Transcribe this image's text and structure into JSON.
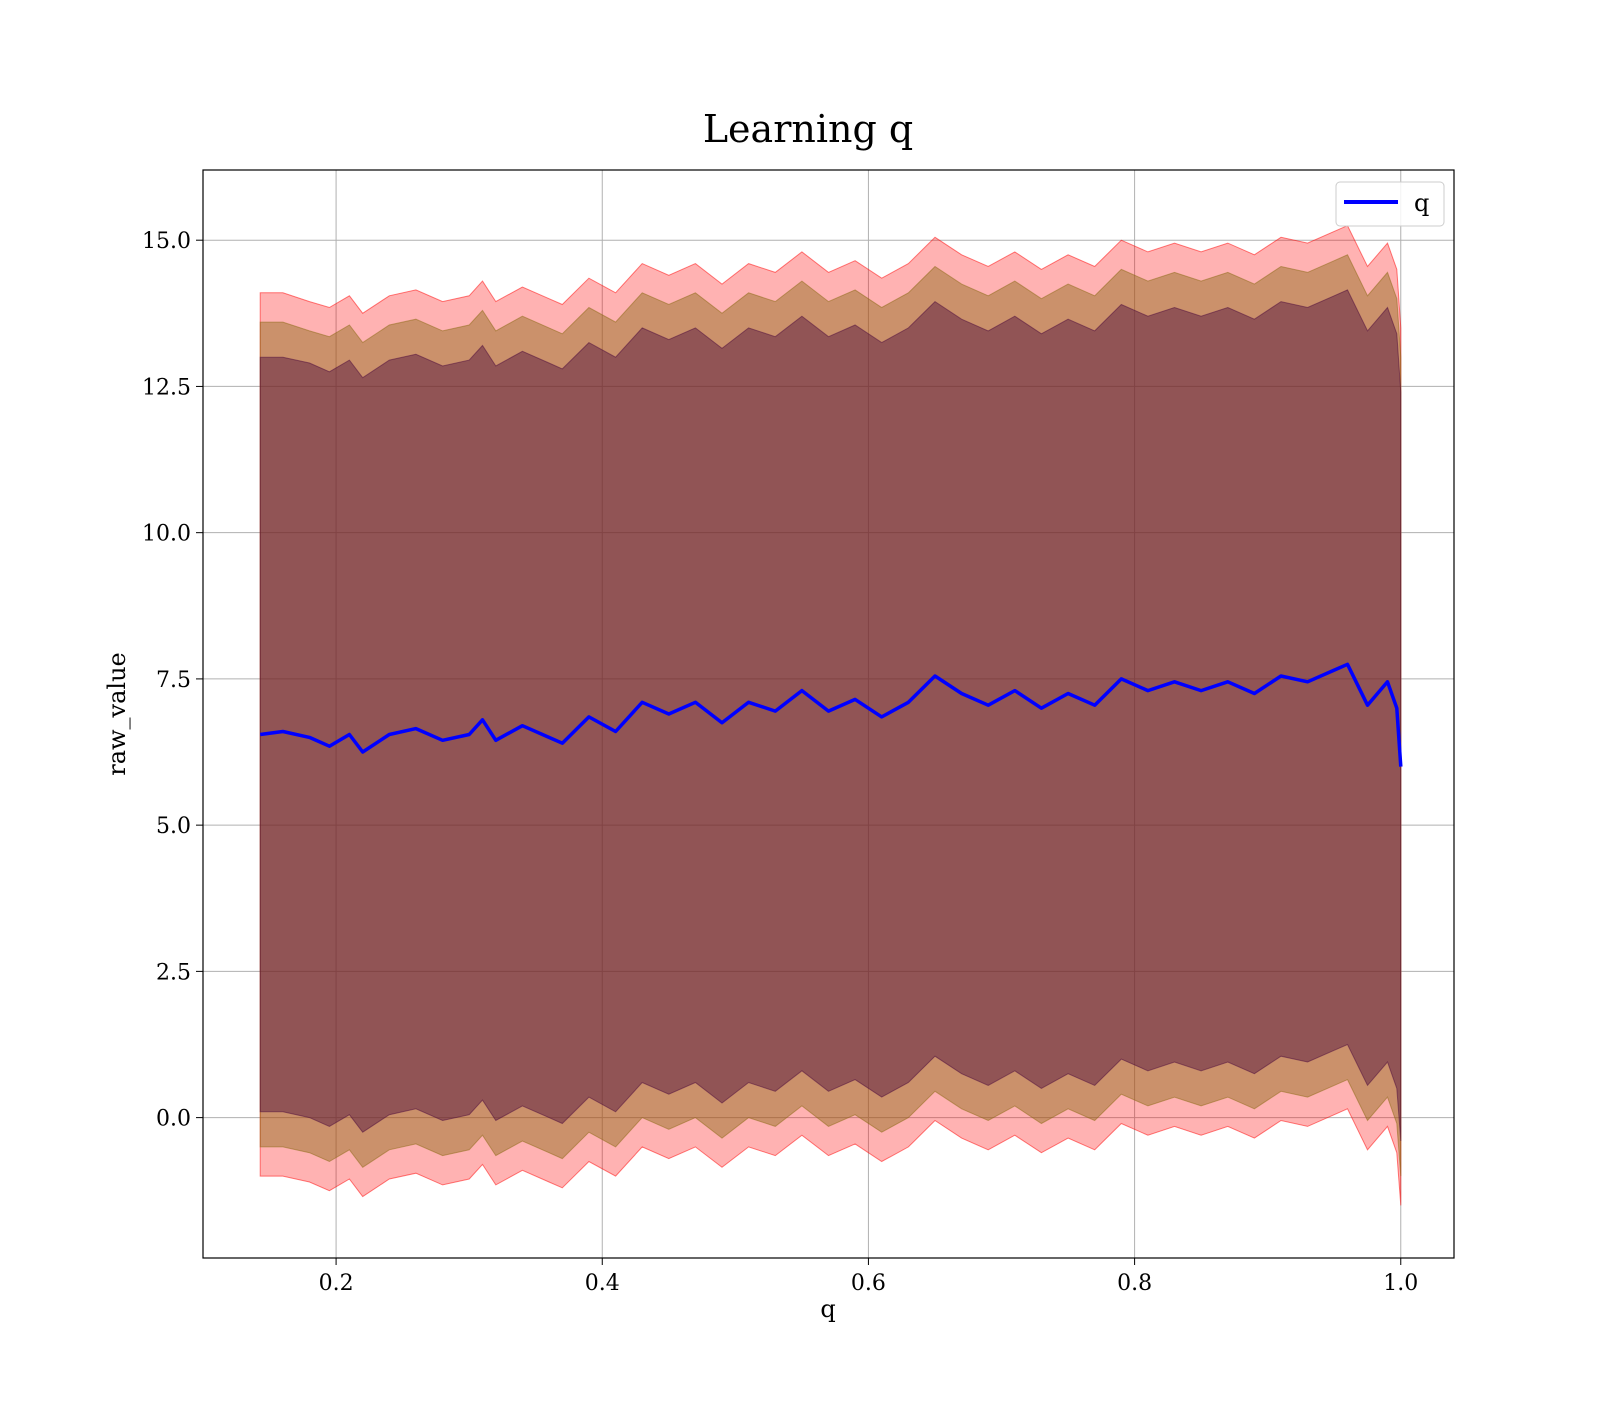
{
  "chart_data": {
    "type": "line",
    "title": "Learning q",
    "xlabel": "q",
    "ylabel": "raw_value",
    "xlim": [
      0.1,
      1.04
    ],
    "ylim": [
      -2.4,
      16.2
    ],
    "xticks": [
      0.2,
      0.4,
      0.6,
      0.8,
      1.0
    ],
    "xtick_labels": [
      "0.2",
      "0.4",
      "0.6",
      "0.8",
      "1.0"
    ],
    "yticks": [
      0.0,
      2.5,
      5.0,
      7.5,
      10.0,
      12.5,
      15.0
    ],
    "ytick_labels": [
      "0.0",
      "2.5",
      "5.0",
      "7.5",
      "10.0",
      "12.5",
      "15.0"
    ],
    "grid": true,
    "legend": {
      "position": "top-right",
      "entries": [
        {
          "label": "q",
          "color": "#0000ff"
        }
      ]
    },
    "series": [
      {
        "name": "q",
        "color": "#0000ff",
        "x": [
          0.143,
          0.16,
          0.18,
          0.195,
          0.21,
          0.22,
          0.24,
          0.26,
          0.28,
          0.3,
          0.31,
          0.32,
          0.34,
          0.36,
          0.37,
          0.39,
          0.41,
          0.43,
          0.45,
          0.47,
          0.49,
          0.51,
          0.53,
          0.55,
          0.57,
          0.59,
          0.61,
          0.63,
          0.65,
          0.67,
          0.69,
          0.71,
          0.73,
          0.75,
          0.77,
          0.79,
          0.81,
          0.83,
          0.85,
          0.87,
          0.89,
          0.91,
          0.93,
          0.95,
          0.96,
          0.975,
          0.99,
          0.997,
          1.0
        ],
        "y": [
          6.55,
          6.6,
          6.5,
          6.35,
          6.55,
          6.25,
          6.55,
          6.65,
          6.45,
          6.55,
          6.8,
          6.45,
          6.7,
          6.5,
          6.4,
          6.85,
          6.6,
          7.1,
          6.9,
          7.1,
          6.75,
          7.1,
          6.95,
          7.3,
          6.95,
          7.15,
          6.85,
          7.1,
          7.55,
          7.25,
          7.05,
          7.3,
          7.0,
          7.25,
          7.05,
          7.5,
          7.3,
          7.45,
          7.3,
          7.45,
          7.25,
          7.55,
          7.45,
          7.65,
          7.75,
          7.05,
          7.45,
          7.0,
          6.0
        ]
      }
    ],
    "bands": [
      {
        "color": "#ff0000",
        "opacity": 0.3,
        "x": [
          0.143,
          0.16,
          0.18,
          0.195,
          0.21,
          0.22,
          0.24,
          0.26,
          0.28,
          0.3,
          0.31,
          0.32,
          0.34,
          0.36,
          0.37,
          0.39,
          0.41,
          0.43,
          0.45,
          0.47,
          0.49,
          0.51,
          0.53,
          0.55,
          0.57,
          0.59,
          0.61,
          0.63,
          0.65,
          0.67,
          0.69,
          0.71,
          0.73,
          0.75,
          0.77,
          0.79,
          0.81,
          0.83,
          0.85,
          0.87,
          0.89,
          0.91,
          0.93,
          0.95,
          0.96,
          0.975,
          0.99,
          0.997,
          1.0
        ],
        "upper": [
          14.1,
          14.1,
          13.95,
          13.85,
          14.05,
          13.75,
          14.05,
          14.15,
          13.95,
          14.05,
          14.3,
          13.95,
          14.2,
          14.0,
          13.9,
          14.35,
          14.1,
          14.6,
          14.4,
          14.6,
          14.25,
          14.6,
          14.45,
          14.8,
          14.45,
          14.65,
          14.35,
          14.6,
          15.05,
          14.75,
          14.55,
          14.8,
          14.5,
          14.75,
          14.55,
          15.0,
          14.8,
          14.95,
          14.8,
          14.95,
          14.75,
          15.05,
          14.95,
          15.15,
          15.25,
          14.55,
          14.95,
          14.5,
          13.5
        ],
        "lower": [
          -1.0,
          -1.0,
          -1.1,
          -1.25,
          -1.05,
          -1.35,
          -1.05,
          -0.95,
          -1.15,
          -1.05,
          -0.8,
          -1.15,
          -0.9,
          -1.1,
          -1.2,
          -0.75,
          -1.0,
          -0.5,
          -0.7,
          -0.5,
          -0.85,
          -0.5,
          -0.65,
          -0.3,
          -0.65,
          -0.45,
          -0.75,
          -0.5,
          -0.05,
          -0.35,
          -0.55,
          -0.3,
          -0.6,
          -0.35,
          -0.55,
          -0.1,
          -0.3,
          -0.15,
          -0.3,
          -0.15,
          -0.35,
          -0.05,
          -0.15,
          0.05,
          0.15,
          -0.55,
          -0.15,
          -0.6,
          -1.5
        ]
      },
      {
        "color": "#8b6914",
        "opacity": 0.45,
        "x": [
          0.143,
          0.16,
          0.18,
          0.195,
          0.21,
          0.22,
          0.24,
          0.26,
          0.28,
          0.3,
          0.31,
          0.32,
          0.34,
          0.36,
          0.37,
          0.39,
          0.41,
          0.43,
          0.45,
          0.47,
          0.49,
          0.51,
          0.53,
          0.55,
          0.57,
          0.59,
          0.61,
          0.63,
          0.65,
          0.67,
          0.69,
          0.71,
          0.73,
          0.75,
          0.77,
          0.79,
          0.81,
          0.83,
          0.85,
          0.87,
          0.89,
          0.91,
          0.93,
          0.95,
          0.96,
          0.975,
          0.99,
          0.997,
          1.0
        ],
        "upper": [
          13.6,
          13.6,
          13.45,
          13.35,
          13.55,
          13.25,
          13.55,
          13.65,
          13.45,
          13.55,
          13.8,
          13.45,
          13.7,
          13.5,
          13.4,
          13.85,
          13.6,
          14.1,
          13.9,
          14.1,
          13.75,
          14.1,
          13.95,
          14.3,
          13.95,
          14.15,
          13.85,
          14.1,
          14.55,
          14.25,
          14.05,
          14.3,
          14.0,
          14.25,
          14.05,
          14.5,
          14.3,
          14.45,
          14.3,
          14.45,
          14.25,
          14.55,
          14.45,
          14.65,
          14.75,
          14.05,
          14.45,
          14.0,
          13.0
        ],
        "lower": [
          -0.5,
          -0.5,
          -0.6,
          -0.75,
          -0.55,
          -0.85,
          -0.55,
          -0.45,
          -0.65,
          -0.55,
          -0.3,
          -0.65,
          -0.4,
          -0.6,
          -0.7,
          -0.25,
          -0.5,
          0.0,
          -0.2,
          0.0,
          -0.35,
          0.0,
          -0.15,
          0.2,
          -0.15,
          0.05,
          -0.25,
          0.0,
          0.45,
          0.15,
          -0.05,
          0.2,
          -0.1,
          0.15,
          -0.05,
          0.4,
          0.2,
          0.35,
          0.2,
          0.35,
          0.15,
          0.45,
          0.35,
          0.55,
          0.65,
          -0.05,
          0.35,
          -0.1,
          -1.0
        ]
      },
      {
        "color": "#4b0a3c",
        "opacity": 0.45,
        "x": [
          0.143,
          0.16,
          0.18,
          0.195,
          0.21,
          0.22,
          0.24,
          0.26,
          0.28,
          0.3,
          0.31,
          0.32,
          0.34,
          0.36,
          0.37,
          0.39,
          0.41,
          0.43,
          0.45,
          0.47,
          0.49,
          0.51,
          0.53,
          0.55,
          0.57,
          0.59,
          0.61,
          0.63,
          0.65,
          0.67,
          0.69,
          0.71,
          0.73,
          0.75,
          0.77,
          0.79,
          0.81,
          0.83,
          0.85,
          0.87,
          0.89,
          0.91,
          0.93,
          0.95,
          0.96,
          0.975,
          0.99,
          0.997,
          1.0
        ],
        "upper": [
          13.0,
          13.0,
          12.9,
          12.75,
          12.95,
          12.65,
          12.95,
          13.05,
          12.85,
          12.95,
          13.2,
          12.85,
          13.1,
          12.9,
          12.8,
          13.25,
          13.0,
          13.5,
          13.3,
          13.5,
          13.15,
          13.5,
          13.35,
          13.7,
          13.35,
          13.55,
          13.25,
          13.5,
          13.95,
          13.65,
          13.45,
          13.7,
          13.4,
          13.65,
          13.45,
          13.9,
          13.7,
          13.85,
          13.7,
          13.85,
          13.65,
          13.95,
          13.85,
          14.05,
          14.15,
          13.45,
          13.85,
          13.4,
          12.4
        ],
        "lower": [
          0.1,
          0.1,
          0.0,
          -0.15,
          0.05,
          -0.25,
          0.05,
          0.15,
          -0.05,
          0.05,
          0.3,
          -0.05,
          0.2,
          0.0,
          -0.1,
          0.35,
          0.1,
          0.6,
          0.4,
          0.6,
          0.25,
          0.6,
          0.45,
          0.8,
          0.45,
          0.65,
          0.35,
          0.6,
          1.05,
          0.75,
          0.55,
          0.8,
          0.5,
          0.75,
          0.55,
          1.0,
          0.8,
          0.95,
          0.8,
          0.95,
          0.75,
          1.05,
          0.95,
          1.15,
          1.25,
          0.55,
          0.95,
          0.5,
          -0.4
        ]
      }
    ]
  }
}
